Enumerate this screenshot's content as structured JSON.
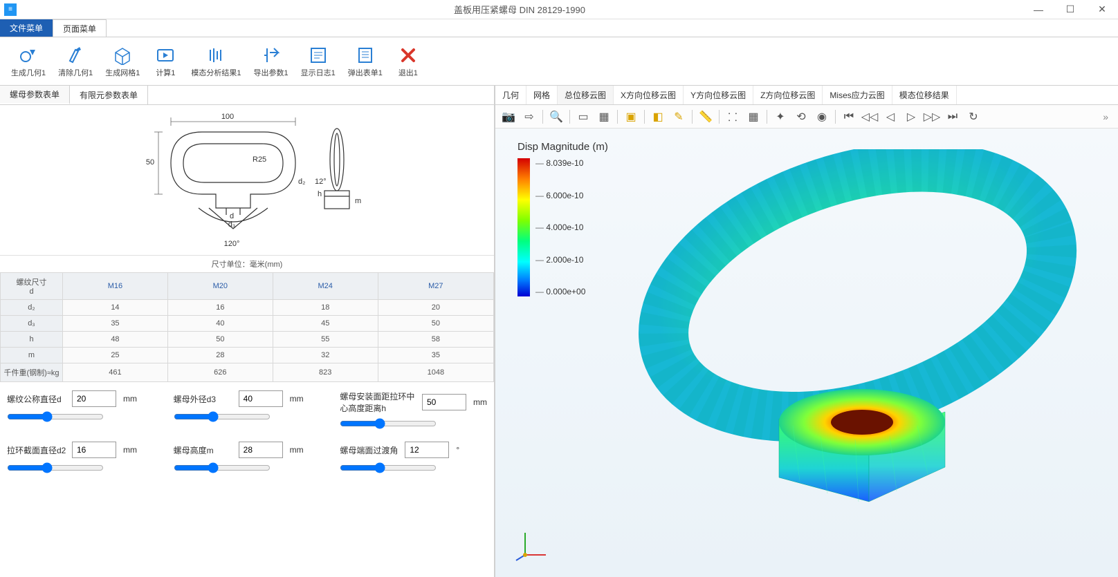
{
  "window": {
    "title": "盖板用压紧螺母 DIN 28129-1990",
    "app_icon_glyph": "≡"
  },
  "menu": {
    "file": "文件菜单",
    "page": "页面菜单"
  },
  "ribbon": [
    {
      "label": "生成几何1",
      "color": "#2a7fd4"
    },
    {
      "label": "清除几何1",
      "color": "#2a7fd4"
    },
    {
      "label": "生成网格1",
      "color": "#2a7fd4"
    },
    {
      "label": "计算1",
      "color": "#2a7fd4"
    },
    {
      "label": "模态分析结果1",
      "color": "#2a7fd4"
    },
    {
      "label": "导出参数1",
      "color": "#2a7fd4"
    },
    {
      "label": "显示日志1",
      "color": "#2a7fd4"
    },
    {
      "label": "弹出表单1",
      "color": "#2a7fd4"
    },
    {
      "label": "退出1",
      "color": "#d9362a"
    }
  ],
  "left_tabs": {
    "params": "螺母参数表单",
    "fea": "有限元参数表单"
  },
  "diagram": {
    "dim_top": "100",
    "dim_left": "50",
    "radius": "R25",
    "d2": "d₂",
    "angle_top": "12°",
    "h": "h",
    "m": "m",
    "d": "d",
    "d3": "d₃",
    "angle_bottom": "120°"
  },
  "unit_label": "尺寸单位：毫米(mm)",
  "table": {
    "row_header": "螺纹尺寸\nd",
    "columns": [
      "M16",
      "M20",
      "M24",
      "M27"
    ],
    "rows": [
      {
        "head": "d₂",
        "cells": [
          "14",
          "16",
          "18",
          "20"
        ]
      },
      {
        "head": "d₃",
        "cells": [
          "35",
          "40",
          "45",
          "50"
        ]
      },
      {
        "head": "h",
        "cells": [
          "48",
          "50",
          "55",
          "58"
        ]
      },
      {
        "head": "m",
        "cells": [
          "25",
          "28",
          "32",
          "35"
        ]
      },
      {
        "head": "千件重(钢制)≈kg",
        "cells": [
          "461",
          "626",
          "823",
          "1048"
        ]
      }
    ]
  },
  "sliders": [
    {
      "label": "螺纹公称直径d",
      "value": "20",
      "unit": "mm"
    },
    {
      "label": "螺母外径d3",
      "value": "40",
      "unit": "mm"
    },
    {
      "label": "螺母安装面距拉环中心高度距离h",
      "value": "50",
      "unit": "mm"
    },
    {
      "label": "拉环截面直径d2",
      "value": "16",
      "unit": "mm"
    },
    {
      "label": "螺母高度m",
      "value": "28",
      "unit": "mm"
    },
    {
      "label": "螺母端面过渡角",
      "value": "12",
      "unit": "°"
    }
  ],
  "right_tabs": [
    "几何",
    "网格",
    "总位移云图",
    "X方向位移云图",
    "Y方向位移云图",
    "Z方向位移云图",
    "Mises应力云图",
    "模态位移结果"
  ],
  "right_tab_active": 2,
  "legend": {
    "title": "Disp Magnitude (m)",
    "ticks": [
      "8.039e-10",
      "6.000e-10",
      "4.000e-10",
      "2.000e-10",
      "0.000e+00"
    ]
  },
  "colors": {
    "primary": "#1e5fb3",
    "ribbon_icon": "#2a7fd4",
    "exit_icon": "#d9362a"
  }
}
